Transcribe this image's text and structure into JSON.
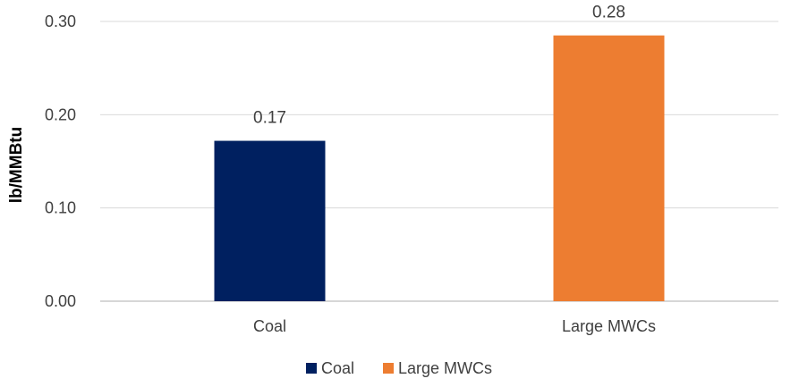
{
  "chart_data": {
    "type": "bar",
    "title": "",
    "xlabel": "",
    "ylabel": "lb/MMBtu",
    "categories": [
      "Coal",
      "Large MWCs"
    ],
    "values": [
      0.172,
      0.285
    ],
    "data_labels": [
      "0.17",
      "0.28"
    ],
    "ylim": [
      0,
      0.3
    ],
    "yticks": [
      0.0,
      0.1,
      0.2,
      0.3
    ],
    "ytick_labels": [
      "0.00",
      "0.10",
      "0.20",
      "0.30"
    ],
    "grid": true,
    "legend": {
      "placement": "bottom",
      "entries": [
        "Coal",
        "Large MWCs"
      ]
    },
    "colors": [
      "#002060",
      "#ED7D31"
    ]
  }
}
